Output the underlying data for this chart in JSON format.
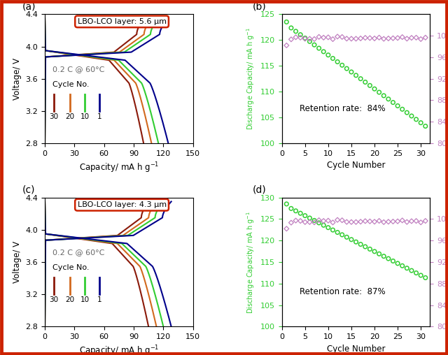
{
  "panel_a": {
    "title": "LBO-LCO layer: 5.6 μm",
    "label": "(a)",
    "annotation": "0.2 C @ 60°C",
    "cycle_label": "Cycle No.",
    "cycles": [
      "30",
      "20",
      "10",
      "1"
    ],
    "colors": [
      "#8B1A0A",
      "#D2691E",
      "#32CD32",
      "#00008B"
    ],
    "cap_ends_discharge": [
      100,
      108,
      115,
      125
    ],
    "xlim": [
      0,
      150
    ],
    "ylim": [
      2.8,
      4.4
    ],
    "xticks": [
      0,
      30,
      60,
      90,
      120,
      150
    ],
    "yticks": [
      2.8,
      3.2,
      3.6,
      4.0,
      4.4
    ]
  },
  "panel_b": {
    "label": "(b)",
    "retention": "Retention rate:  84%",
    "start_cap": 123.0,
    "end_cap_ratio": 0.84,
    "n_cycles": 31,
    "xlim": [
      0,
      32
    ],
    "ylim_left": [
      100,
      125
    ],
    "ylim_right": [
      80,
      104
    ],
    "yticks_left": [
      100,
      105,
      110,
      115,
      120,
      125
    ],
    "yticks_right": [
      80,
      84,
      88,
      92,
      96,
      100
    ],
    "xticks": [
      0,
      5,
      10,
      15,
      20,
      25,
      30
    ]
  },
  "panel_c": {
    "title": "LBO-LCO layer: 4.3 μm",
    "label": "(c)",
    "annotation": "0.2 C @ 60°C",
    "cycle_label": "Cycle No.",
    "cycles": [
      "30",
      "20",
      "10",
      "1"
    ],
    "colors": [
      "#8B1A0A",
      "#D2691E",
      "#32CD32",
      "#00008B"
    ],
    "cap_ends_discharge": [
      105,
      113,
      120,
      128
    ],
    "xlim": [
      0,
      150
    ],
    "ylim": [
      2.8,
      4.4
    ],
    "xticks": [
      0,
      30,
      60,
      90,
      120,
      150
    ],
    "yticks": [
      2.8,
      3.2,
      3.6,
      4.0,
      4.4
    ]
  },
  "panel_d": {
    "label": "(d)",
    "retention": "Retention rate:  87%",
    "start_cap": 128.0,
    "end_cap_ratio": 0.87,
    "n_cycles": 31,
    "xlim": [
      0,
      32
    ],
    "ylim_left": [
      100,
      130
    ],
    "ylim_right": [
      80,
      104
    ],
    "yticks_left": [
      100,
      105,
      110,
      115,
      120,
      125,
      130
    ],
    "yticks_right": [
      80,
      84,
      88,
      92,
      96,
      100
    ],
    "xticks": [
      0,
      5,
      10,
      15,
      20,
      25,
      30
    ]
  },
  "border_color": "#CC2200",
  "green_color": "#32CD32",
  "purple_color": "#C080C0"
}
